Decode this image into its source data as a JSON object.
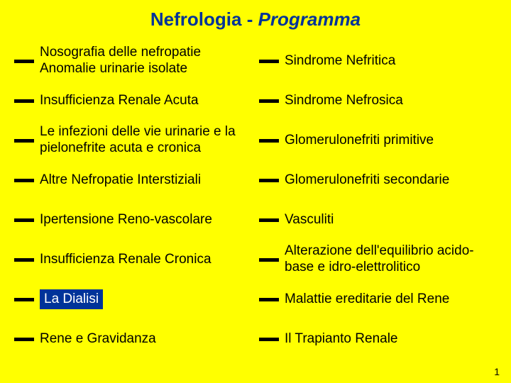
{
  "title_part1": "Nefrologia - ",
  "title_part2": "Programma",
  "left_items": [
    {
      "text": "Nosografia delle nefropatie Anomalie urinarie isolate",
      "highlight": false
    },
    {
      "text": "Insufficienza Renale Acuta",
      "highlight": false
    },
    {
      "text": "Le infezioni delle vie urinarie e la pielonefrite acuta e cronica",
      "highlight": false
    },
    {
      "text": "Altre Nefropatie Interstiziali",
      "highlight": false
    },
    {
      "text": "Ipertensione Reno-vascolare",
      "highlight": false
    },
    {
      "text": "Insufficienza Renale Cronica",
      "highlight": false
    },
    {
      "text": "La Dialisi",
      "highlight": true
    },
    {
      "text": "Rene e Gravidanza",
      "highlight": false
    }
  ],
  "right_items": [
    {
      "text": "Sindrome Nefritica",
      "highlight": false
    },
    {
      "text": "Sindrome Nefrosica",
      "highlight": false
    },
    {
      "text": "Glomerulonefriti primitive",
      "highlight": false
    },
    {
      "text": "Glomerulonefriti secondarie",
      "highlight": false
    },
    {
      "text": "Vasculiti",
      "highlight": false
    },
    {
      "text": "Alterazione dell'equilibrio acido-base e idro-elettrolitico",
      "highlight": false
    },
    {
      "text": "Malattie ereditarie del Rene",
      "highlight": false
    },
    {
      "text": "Il Trapianto Renale",
      "highlight": false
    }
  ],
  "page_number": "1",
  "colors": {
    "background": "#ffff00",
    "title_color": "#003399",
    "highlight_bg": "#003399",
    "highlight_fg": "#ffffff",
    "text_color": "#000000",
    "bullet_color": "#000000"
  }
}
